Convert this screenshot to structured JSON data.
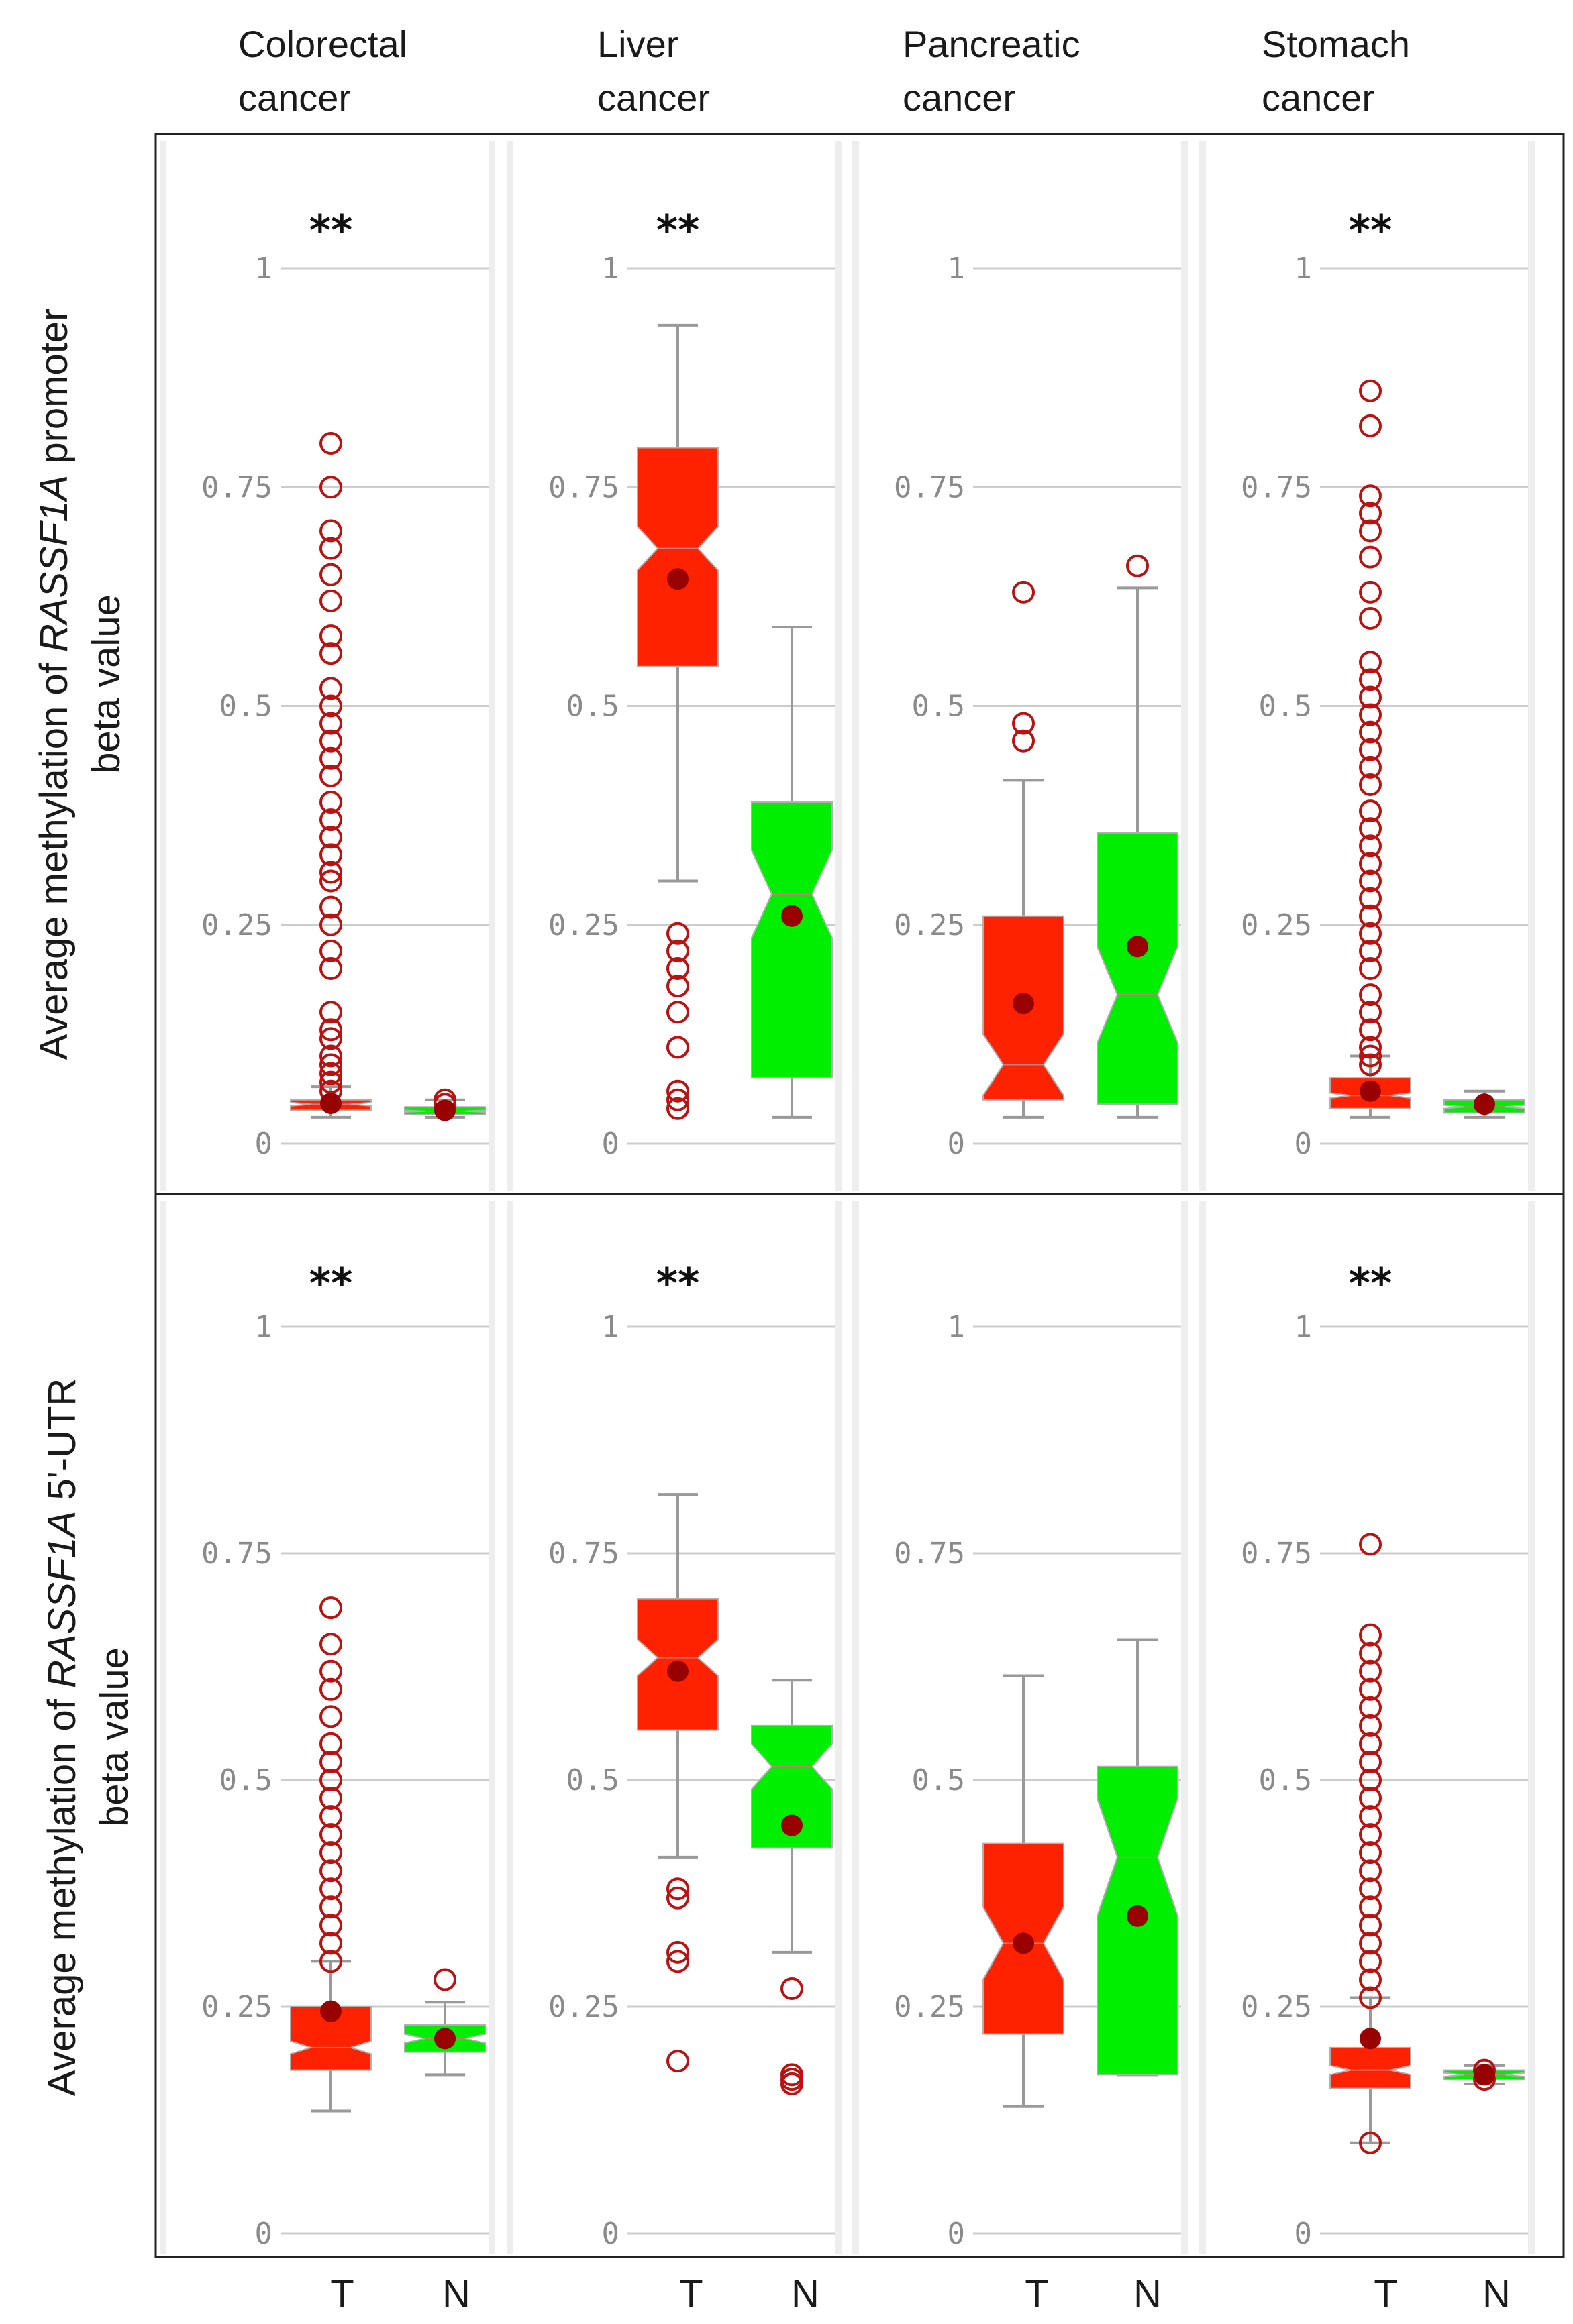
{
  "columns": [
    {
      "line1": "Colorectal",
      "line2": "cancer"
    },
    {
      "line1": "Liver",
      "line2": "cancer"
    },
    {
      "line1": "Pancreatic",
      "line2": "cancer"
    },
    {
      "line1": "Stomach",
      "line2": "cancer"
    }
  ],
  "rows": [
    {
      "ylabel_pre": "Average methylation of ",
      "ylabel_gene": "RASSF1A",
      "ylabel_post": " promoter",
      "ylabel_line2": "beta value"
    },
    {
      "ylabel_pre": "Average methylation of ",
      "ylabel_gene": "RASSF1A",
      "ylabel_post": " 5'-UTR",
      "ylabel_line2": "beta value"
    }
  ],
  "chart_data": {
    "type": "boxplot",
    "y_ticks": [
      "0",
      "0.25",
      "0.5",
      "0.75",
      "1"
    ],
    "ylim": [
      0,
      1
    ],
    "x_categories": [
      "T",
      "N"
    ],
    "colors": {
      "T": "#ff2200",
      "N": "#00ee00",
      "mean": "#990000",
      "outlier": "#bb1111",
      "whisker": "#999999",
      "panel_bg": "#eeeeee",
      "grid": "#cccccc"
    },
    "panels": [
      {
        "row": 0,
        "col": 0,
        "sig": "**",
        "T": {
          "whislo": 0.03,
          "q1": 0.038,
          "med": 0.045,
          "q3": 0.05,
          "whishi": 0.065,
          "mean": 0.046,
          "notch": [
            0.043,
            0.047
          ],
          "outliers": [
            0.06,
            0.07,
            0.08,
            0.09,
            0.1,
            0.12,
            0.13,
            0.15,
            0.2,
            0.22,
            0.25,
            0.27,
            0.3,
            0.31,
            0.33,
            0.35,
            0.37,
            0.39,
            0.42,
            0.44,
            0.46,
            0.48,
            0.5,
            0.52,
            0.56,
            0.58,
            0.62,
            0.65,
            0.68,
            0.7,
            0.75,
            0.8
          ]
        },
        "N": {
          "whislo": 0.03,
          "q1": 0.033,
          "med": 0.037,
          "q3": 0.042,
          "whishi": 0.05,
          "mean": 0.038,
          "notch": [
            0.036,
            0.038
          ],
          "outliers": [
            0.045,
            0.05
          ]
        }
      },
      {
        "row": 0,
        "col": 1,
        "sig": "**",
        "T": {
          "whislo": 0.3,
          "q1": 0.545,
          "med": 0.68,
          "q3": 0.795,
          "whishi": 0.935,
          "mean": 0.645,
          "notch": [
            0.655,
            0.705
          ],
          "outliers": [
            0.04,
            0.05,
            0.06,
            0.11,
            0.15,
            0.18,
            0.2,
            0.22,
            0.24
          ]
        },
        "N": {
          "whislo": 0.03,
          "q1": 0.075,
          "med": 0.285,
          "q3": 0.39,
          "whishi": 0.59,
          "mean": 0.26,
          "notch": [
            0.235,
            0.335
          ],
          "outliers": []
        }
      },
      {
        "row": 0,
        "col": 2,
        "sig": "",
        "T": {
          "whislo": 0.03,
          "q1": 0.05,
          "med": 0.09,
          "q3": 0.26,
          "whishi": 0.415,
          "mean": 0.16,
          "notch": [
            0.055,
            0.125
          ],
          "outliers": [
            0.46,
            0.48,
            0.63
          ]
        },
        "N": {
          "whislo": 0.03,
          "q1": 0.045,
          "med": 0.17,
          "q3": 0.355,
          "whishi": 0.635,
          "mean": 0.225,
          "notch": [
            0.115,
            0.225
          ],
          "outliers": [
            0.66
          ]
        }
      },
      {
        "row": 0,
        "col": 3,
        "sig": "**",
        "T": {
          "whislo": 0.03,
          "q1": 0.04,
          "med": 0.055,
          "q3": 0.075,
          "whishi": 0.1,
          "mean": 0.06,
          "notch": [
            0.052,
            0.058
          ],
          "outliers": [
            0.09,
            0.1,
            0.11,
            0.13,
            0.15,
            0.17,
            0.2,
            0.22,
            0.24,
            0.26,
            0.28,
            0.3,
            0.32,
            0.34,
            0.36,
            0.38,
            0.41,
            0.43,
            0.45,
            0.47,
            0.49,
            0.51,
            0.53,
            0.55,
            0.6,
            0.63,
            0.67,
            0.7,
            0.72,
            0.74,
            0.82,
            0.86
          ]
        },
        "N": {
          "whislo": 0.03,
          "q1": 0.035,
          "med": 0.042,
          "q3": 0.05,
          "whishi": 0.06,
          "mean": 0.045,
          "notch": [
            0.04,
            0.044
          ],
          "outliers": []
        }
      },
      {
        "row": 1,
        "col": 0,
        "sig": "**",
        "T": {
          "whislo": 0.135,
          "q1": 0.18,
          "med": 0.205,
          "q3": 0.25,
          "whishi": 0.3,
          "mean": 0.245,
          "notch": [
            0.198,
            0.212
          ],
          "outliers": [
            0.3,
            0.32,
            0.34,
            0.36,
            0.38,
            0.4,
            0.42,
            0.44,
            0.46,
            0.48,
            0.5,
            0.52,
            0.54,
            0.57,
            0.6,
            0.62,
            0.65,
            0.69
          ]
        },
        "N": {
          "whislo": 0.175,
          "q1": 0.2,
          "med": 0.215,
          "q3": 0.23,
          "whishi": 0.255,
          "mean": 0.215,
          "notch": [
            0.21,
            0.22
          ],
          "outliers": [
            0.28
          ]
        }
      },
      {
        "row": 1,
        "col": 1,
        "sig": "**",
        "T": {
          "whislo": 0.415,
          "q1": 0.555,
          "med": 0.635,
          "q3": 0.7,
          "whishi": 0.815,
          "mean": 0.62,
          "notch": [
            0.615,
            0.655
          ],
          "outliers": [
            0.19,
            0.3,
            0.31,
            0.37,
            0.38
          ]
        },
        "N": {
          "whislo": 0.31,
          "q1": 0.425,
          "med": 0.515,
          "q3": 0.56,
          "whishi": 0.61,
          "mean": 0.45,
          "notch": [
            0.49,
            0.54
          ],
          "outliers": [
            0.165,
            0.17,
            0.175,
            0.27
          ]
        }
      },
      {
        "row": 1,
        "col": 2,
        "sig": "",
        "T": {
          "whislo": 0.14,
          "q1": 0.22,
          "med": 0.32,
          "q3": 0.43,
          "whishi": 0.615,
          "mean": 0.32,
          "notch": [
            0.28,
            0.36
          ],
          "outliers": []
        },
        "N": {
          "whislo": 0.175,
          "q1": 0.175,
          "med": 0.415,
          "q3": 0.515,
          "whishi": 0.655,
          "mean": 0.35,
          "notch": [
            0.35,
            0.48
          ],
          "outliers": []
        }
      },
      {
        "row": 1,
        "col": 3,
        "sig": "**",
        "T": {
          "whislo": 0.1,
          "q1": 0.16,
          "med": 0.18,
          "q3": 0.205,
          "whishi": 0.26,
          "mean": 0.215,
          "notch": [
            0.175,
            0.185
          ],
          "outliers": [
            0.1,
            0.26,
            0.28,
            0.3,
            0.32,
            0.34,
            0.36,
            0.38,
            0.4,
            0.42,
            0.44,
            0.46,
            0.48,
            0.5,
            0.52,
            0.54,
            0.56,
            0.58,
            0.6,
            0.62,
            0.64,
            0.66,
            0.76
          ]
        },
        "N": {
          "whislo": 0.165,
          "q1": 0.17,
          "med": 0.175,
          "q3": 0.18,
          "whishi": 0.185,
          "mean": 0.175,
          "notch": [
            0.173,
            0.177
          ],
          "outliers": [
            0.17,
            0.18
          ]
        }
      }
    ]
  }
}
